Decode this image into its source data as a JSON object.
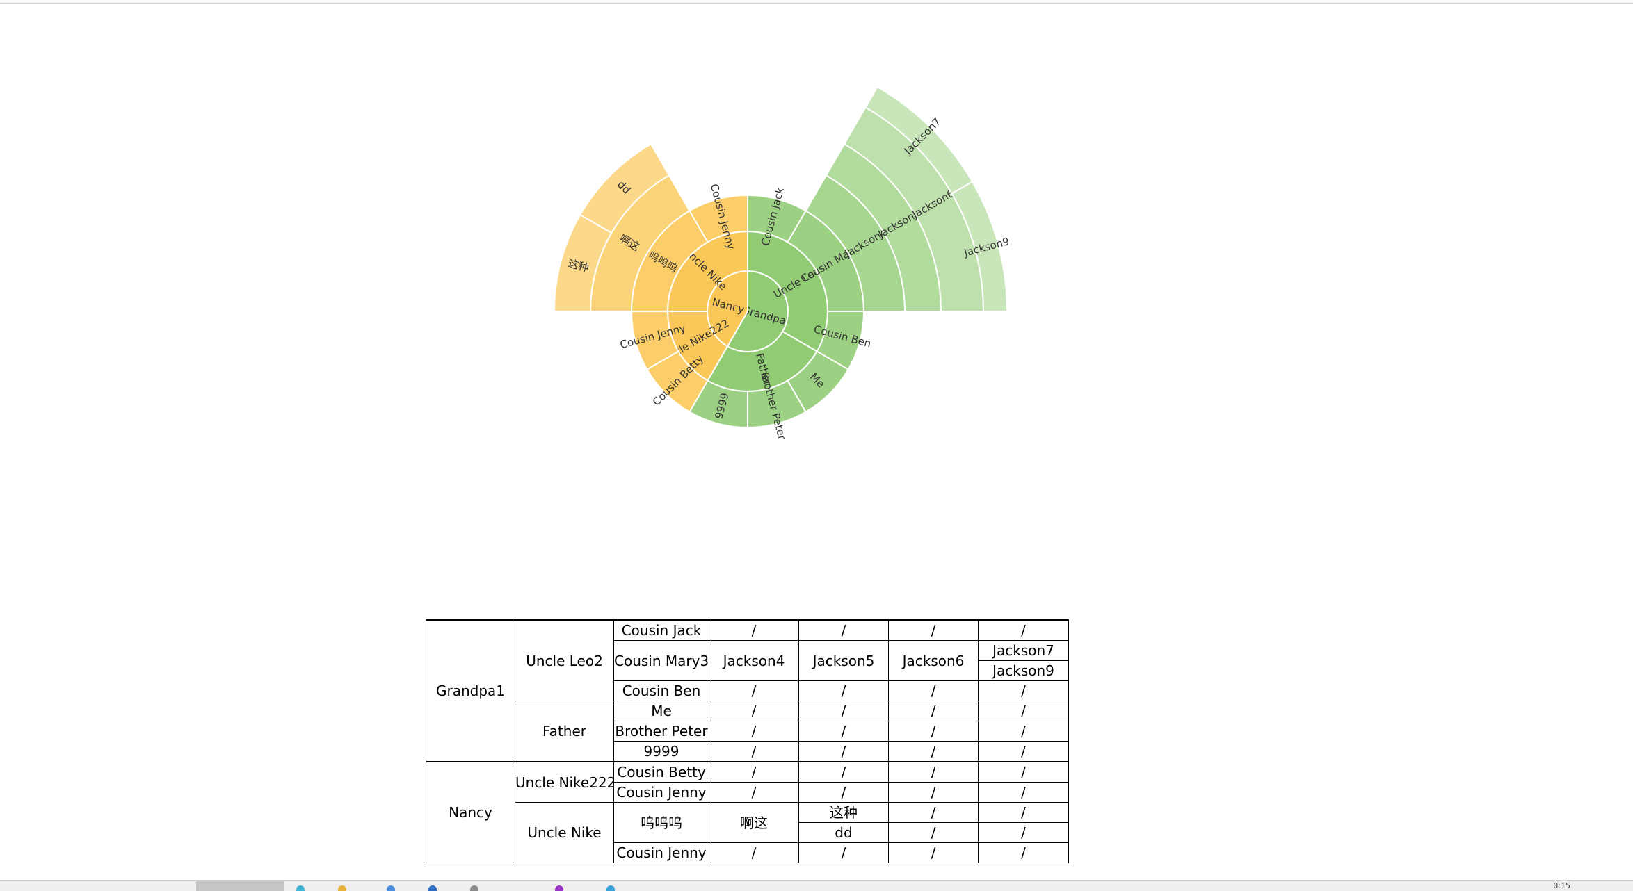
{
  "chart_data": {
    "type": "sunburst",
    "colors": {
      "Grandpa1": "#91cc75",
      "Nancy": "#fac858"
    },
    "root": {
      "name": "",
      "children": [
        {
          "name": "Grandpa1",
          "children": [
            {
              "name": "Uncle Leo2",
              "children": [
                {
                  "name": "Cousin Jack"
                },
                {
                  "name": "Cousin Mary3",
                  "children": [
                    {
                      "name": "Jackson4",
                      "children": [
                        {
                          "name": "Jackson5",
                          "children": [
                            {
                              "name": "Jackson6",
                              "children": [
                                {
                                  "name": "Jackson7"
                                },
                                {
                                  "name": "Jackson9"
                                }
                              ]
                            }
                          ]
                        }
                      ]
                    }
                  ]
                },
                {
                  "name": "Cousin Ben"
                }
              ]
            },
            {
              "name": "Father",
              "children": [
                {
                  "name": "Me"
                },
                {
                  "name": "Brother Peter"
                },
                {
                  "name": "9999"
                }
              ]
            }
          ]
        },
        {
          "name": "Nancy",
          "children": [
            {
              "name": "Uncle Nike222",
              "children": [
                {
                  "name": "Cousin Betty"
                },
                {
                  "name": "Cousin Jenny"
                }
              ]
            },
            {
              "name": "Uncle Nike",
              "children": [
                {
                  "name": "呜呜呜",
                  "children": [
                    {
                      "name": "啊这",
                      "children": [
                        {
                          "name": "这种"
                        },
                        {
                          "name": "dd"
                        }
                      ]
                    }
                  ]
                },
                {
                  "name": "Cousin Jenny"
                }
              ]
            }
          ]
        }
      ]
    }
  },
  "table": {
    "rows": [
      [
        {
          "text": "Grandpa1",
          "rowspan": 7
        },
        {
          "text": "Uncle Leo2",
          "rowspan": 4
        },
        {
          "text": "Cousin Jack"
        },
        {
          "text": "/"
        },
        {
          "text": "/"
        },
        {
          "text": "/"
        },
        {
          "text": "/"
        }
      ],
      [
        {
          "text": "Cousin Mary3",
          "rowspan": 2
        },
        {
          "text": "Jackson4",
          "rowspan": 2
        },
        {
          "text": "Jackson5",
          "rowspan": 2
        },
        {
          "text": "Jackson6",
          "rowspan": 2
        },
        {
          "text": "Jackson7"
        }
      ],
      [
        {
          "text": "Jackson9"
        }
      ],
      [
        {
          "text": "Cousin Ben"
        },
        {
          "text": "/"
        },
        {
          "text": "/"
        },
        {
          "text": "/"
        },
        {
          "text": "/"
        }
      ],
      [
        {
          "text": "Father",
          "rowspan": 3
        },
        {
          "text": "Me"
        },
        {
          "text": "/"
        },
        {
          "text": "/"
        },
        {
          "text": "/"
        },
        {
          "text": "/"
        }
      ],
      [
        {
          "text": "Brother Peter"
        },
        {
          "text": "/"
        },
        {
          "text": "/"
        },
        {
          "text": "/"
        },
        {
          "text": "/"
        }
      ],
      [
        {
          "text": "9999"
        },
        {
          "text": "/"
        },
        {
          "text": "/"
        },
        {
          "text": "/"
        },
        {
          "text": "/"
        }
      ],
      [
        {
          "text": "Nancy",
          "rowspan": 5
        },
        {
          "text": "Uncle Nike222",
          "rowspan": 2
        },
        {
          "text": "Cousin Betty"
        },
        {
          "text": "/"
        },
        {
          "text": "/"
        },
        {
          "text": "/"
        },
        {
          "text": "/"
        }
      ],
      [
        {
          "text": "Cousin Jenny"
        },
        {
          "text": "/"
        },
        {
          "text": "/"
        },
        {
          "text": "/"
        },
        {
          "text": "/"
        }
      ],
      [
        {
          "text": "Uncle Nike",
          "rowspan": 3
        },
        {
          "text": "呜呜呜",
          "rowspan": 2
        },
        {
          "text": "啊这",
          "rowspan": 2
        },
        {
          "text": "这种"
        },
        {
          "text": "/"
        },
        {
          "text": "/"
        }
      ],
      [
        {
          "text": "dd"
        },
        {
          "text": "/"
        },
        {
          "text": "/"
        }
      ],
      [
        {
          "text": "Cousin Jenny"
        },
        {
          "text": "/"
        },
        {
          "text": "/"
        },
        {
          "text": "/"
        },
        {
          "text": "/"
        }
      ]
    ]
  },
  "taskbar": {
    "clock": "0:15"
  }
}
